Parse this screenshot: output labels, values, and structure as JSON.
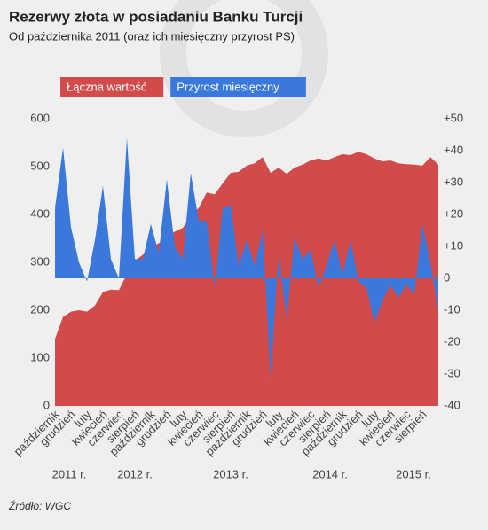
{
  "chart_data": {
    "type": "area",
    "title": "Rezerwy złota w posiadaniu Banku Turcji",
    "subtitle": "Od października 2011 (oraz ich miesięczny przyrost PS)",
    "source": "Źródło: WGC",
    "categories": [
      "październik",
      null,
      "grudzień",
      null,
      "luty",
      null,
      "kwiecień",
      null,
      "czerwiec",
      null,
      "sierpień",
      null,
      "październik",
      null,
      "grudzień",
      null,
      "luty",
      null,
      "kwiecień",
      null,
      "czerwiec",
      null,
      "sierpień",
      null,
      "październik",
      null,
      "grudzień",
      null,
      "luty",
      null,
      "kwiecień",
      null,
      "czerwiec",
      null,
      "sierpień",
      null,
      "październik",
      null,
      "grudzień",
      null,
      "luty",
      null,
      "kwiecień",
      null,
      "czerwiec",
      null,
      "sierpień",
      null,
      null
    ],
    "year_labels": [
      "2011 r.",
      "2012 r.",
      "2013 r.",
      "2014 r.",
      "2015 r."
    ],
    "series": [
      {
        "name": "Łączna wartość",
        "color": "#d24b4b",
        "axis": "y",
        "values": [
          140,
          186,
          197,
          200,
          197,
          210,
          238,
          243,
          242,
          275,
          303,
          316,
          331,
          340,
          353,
          364,
          372,
          396,
          414,
          446,
          442,
          465,
          487,
          489,
          502,
          507,
          520,
          487,
          498,
          485,
          498,
          504,
          513,
          517,
          513,
          520,
          526,
          524,
          531,
          526,
          517,
          511,
          513,
          507,
          505,
          504,
          502,
          520,
          504
        ]
      },
      {
        "name": "Przyrost miesięczny",
        "color": "#3a78dc",
        "axis": "y2",
        "values": [
          22,
          41,
          16,
          5,
          -1,
          12,
          29,
          6,
          0,
          44,
          6,
          6,
          17,
          8,
          31,
          10,
          6,
          33,
          18,
          18,
          -3,
          22,
          23,
          4,
          12,
          4,
          15,
          -31,
          8,
          -13,
          13,
          6,
          9,
          -3,
          4,
          12,
          1,
          12,
          -1,
          -3,
          -14,
          -7,
          -2,
          -6,
          -2,
          -5,
          17,
          5,
          -10
        ]
      }
    ],
    "ylim": [
      0,
      600
    ],
    "yticks": [
      0,
      100,
      200,
      300,
      400,
      500,
      600
    ],
    "y2lim": [
      -40,
      50
    ],
    "y2ticks": [
      {
        "value": 50,
        "label": "+50"
      },
      {
        "value": 40,
        "label": "+40"
      },
      {
        "value": 30,
        "label": "+30"
      },
      {
        "value": 20,
        "label": "+20"
      },
      {
        "value": 10,
        "label": "+10"
      },
      0,
      -10,
      -20,
      -30,
      -40
    ]
  }
}
